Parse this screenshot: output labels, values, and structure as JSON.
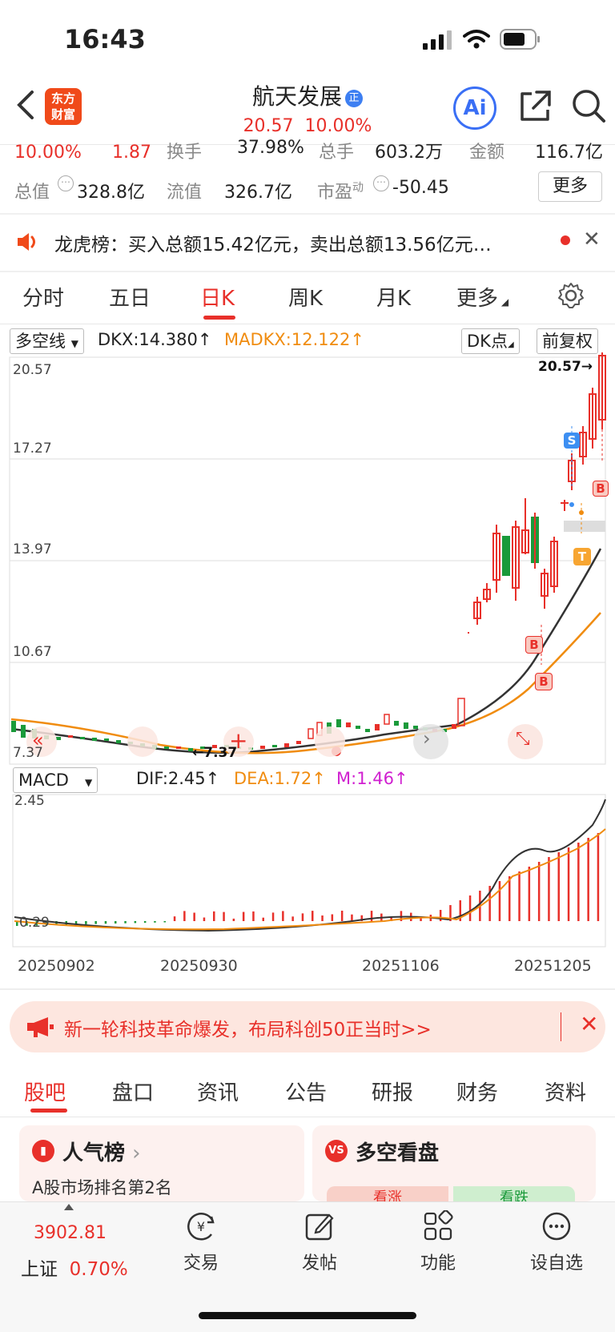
{
  "status_bar": {
    "time": "16:43"
  },
  "header": {
    "logo_line1": "东方",
    "logo_line2": "财富",
    "stock_name": "航天发展",
    "badge": "正",
    "price": "20.57",
    "change_pct": "10.00%",
    "ai_label": "Ai"
  },
  "quote": {
    "row1": {
      "pct": "10.00%",
      "chg": "1.87",
      "turnover_label": "换手",
      "turnover": "37.98%",
      "volume_label": "总手",
      "volume": "603.2万",
      "amount_label": "金额",
      "amount": "116.7亿"
    },
    "row2": {
      "mktcap_label": "总值",
      "mktcap": "328.8亿",
      "float_label": "流值",
      "float": "326.7亿",
      "pe_label": "市盈",
      "pe_sup": "动",
      "pe": "-50.45"
    },
    "more_button": "更多"
  },
  "dragon_tiger": {
    "text": "龙虎榜：买入总额15.42亿元，卖出总额13.56亿元…"
  },
  "period_tabs": [
    "分时",
    "五日",
    "日K",
    "周K",
    "月K",
    "更多"
  ],
  "active_period": "日K",
  "indicator_bar": {
    "selector": "多空线",
    "dkx": "DKX:14.380",
    "madkx": "MADKX:12.122",
    "dk_button": "DK点",
    "adjust_button": "前复权"
  },
  "kchart": {
    "y_labels": [
      "20.57",
      "17.27",
      "13.97",
      "10.67",
      "7.37"
    ],
    "high_marker": "20.57→",
    "low_marker": "←7.37",
    "signals": [
      "S",
      "B",
      "T",
      "B",
      "B"
    ]
  },
  "macd_bar": {
    "selector": "MACD",
    "dif": "DIF:2.45",
    "dea": "DEA:1.72",
    "m": "M:1.46"
  },
  "macd_chart": {
    "y_top": "2.45",
    "y_bottom": "0.29",
    "dates": [
      "20250902",
      "20250930",
      "20251106",
      "20251205"
    ]
  },
  "banner": {
    "text": "新一轮科技革命爆发，布局科创50正当时>>"
  },
  "bottom_tabs": [
    "股吧",
    "盘口",
    "资讯",
    "公告",
    "研报",
    "财务",
    "资料"
  ],
  "active_bottom_tab": "股吧",
  "cards": {
    "popularity": {
      "title": "人气榜",
      "subtitle": "A股市场排名第2名"
    },
    "longshort": {
      "title": "多空看盘",
      "up": "看涨",
      "down": "看跌"
    }
  },
  "bottom_nav": {
    "index_value": "3902.81",
    "index_name": "上证",
    "index_pct": "0.70%",
    "items": [
      "交易",
      "发帖",
      "功能",
      "设自选"
    ]
  },
  "colors": {
    "up": "#e8302a",
    "down": "#1a9a3a",
    "accent_orange": "#f08c10",
    "brand": "#f04a1a"
  }
}
